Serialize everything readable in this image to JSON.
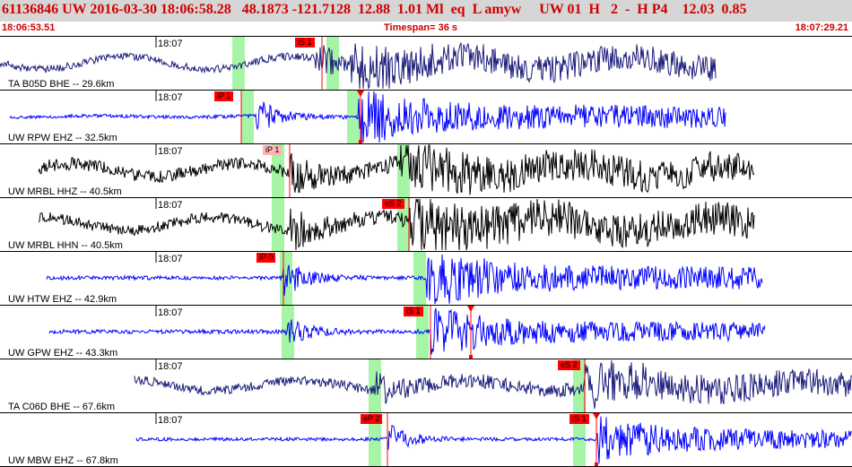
{
  "header": {
    "title": "61136846 UW 2016-03-30 18:06:58.28   48.1873 -121.7128  12.88  1.01 Ml  eq  L amyw     UW 01  H   2  -  H P4    12.03  0.85",
    "start_time": "18:06:53.51",
    "timespan": "Timespan=  36 s",
    "end_time": "18:07:29.21"
  },
  "colors": {
    "title_text": "#d00000",
    "title_bg": "#d6d6d6",
    "pick_red": "#ff0000",
    "pick_pink": "#ffb4b4",
    "window_green": "#a6f5a6",
    "trace_black": "#000000",
    "trace_blue": "#0000ff",
    "trace_navy": "#1a1a7a"
  },
  "traces": [
    {
      "label": "TA B05D BHE -- 29.6km",
      "tick": "18:07",
      "color": "#1a1a7a",
      "start_frac": 0.0,
      "end_frac": 0.84,
      "amp": 0.18,
      "noise": 0.09,
      "onset1": 0.37,
      "onset2": 0.41,
      "burst": 0.3,
      "style": "wave",
      "picks": [
        {
          "label": "iS 1",
          "frac": 0.378,
          "kind": "red",
          "line": "#ff0000",
          "marker": false
        }
      ],
      "windows": [
        {
          "frac": 0.28
        },
        {
          "frac": 0.39
        }
      ]
    },
    {
      "label": "UW RPW EHZ -- 32.5km",
      "tick": "18:07",
      "color": "#0000ff",
      "start_frac": 0.012,
      "end_frac": 0.852,
      "amp": 0.02,
      "noise": 0.04,
      "onset1": 0.3,
      "onset2": 0.42,
      "burst": 0.38,
      "style": "quiet",
      "picks": [
        {
          "label": "iP 1",
          "frac": 0.283,
          "kind": "red",
          "line": "#ff0000",
          "marker": false
        },
        {
          "label": "",
          "frac": 0.423,
          "kind": "red",
          "line": "#ff0000",
          "marker": true
        }
      ],
      "windows": [
        {
          "frac": 0.29
        },
        {
          "frac": 0.415
        }
      ]
    },
    {
      "label": "UW MRBL HHZ -- 40.5km",
      "tick": "18:07",
      "color": "#000000",
      "start_frac": 0.045,
      "end_frac": 0.885,
      "amp": 0.18,
      "noise": 0.16,
      "onset1": 0.34,
      "onset2": 0.47,
      "burst": 0.3,
      "style": "wave",
      "picks": [
        {
          "label": "iP 1",
          "frac": 0.34,
          "kind": "pink",
          "line": "#ff0000",
          "marker": false
        }
      ],
      "windows": [
        {
          "frac": 0.326
        },
        {
          "frac": 0.474
        }
      ]
    },
    {
      "label": "UW MRBL HHN -- 40.5km",
      "tick": "18:07",
      "color": "#000000",
      "start_frac": 0.045,
      "end_frac": 0.885,
      "amp": 0.18,
      "noise": 0.14,
      "onset1": 0.34,
      "onset2": 0.48,
      "burst": 0.38,
      "style": "wave",
      "picks": [
        {
          "label": "eS 2",
          "frac": 0.48,
          "kind": "red",
          "line": "#ff0000",
          "marker": false
        }
      ],
      "windows": [
        {
          "frac": 0.326
        },
        {
          "frac": 0.474
        }
      ]
    },
    {
      "label": "UW HTW EHZ -- 42.9km",
      "tick": "18:07",
      "color": "#0000ff",
      "start_frac": 0.055,
      "end_frac": 0.895,
      "amp": 0.0,
      "noise": 0.05,
      "onset1": 0.332,
      "onset2": 0.5,
      "burst": 0.38,
      "style": "quiet",
      "picks": [
        {
          "label": "iP 0",
          "frac": 0.333,
          "kind": "red",
          "line": "#ff0000",
          "marker": false
        }
      ],
      "windows": [
        {
          "frac": 0.336
        },
        {
          "frac": 0.493
        }
      ]
    },
    {
      "label": "UW GPW EHZ -- 43.3km",
      "tick": "18:07",
      "color": "#0000ff",
      "start_frac": 0.058,
      "end_frac": 0.898,
      "amp": 0.0,
      "noise": 0.05,
      "onset1": 0.335,
      "onset2": 0.505,
      "burst": 0.3,
      "style": "quiet",
      "picks": [
        {
          "label": "iS 1",
          "frac": 0.505,
          "kind": "red",
          "line": "#ff0000",
          "marker": false
        },
        {
          "label": "",
          "frac": 0.553,
          "kind": "red",
          "line": "#ff0000",
          "marker": true
        }
      ],
      "windows": [
        {
          "frac": 0.338
        },
        {
          "frac": 0.496
        }
      ]
    },
    {
      "label": "TA C06D BHE -- 67.6km",
      "tick": "18:07",
      "color": "#1a1a7a",
      "start_frac": 0.158,
      "end_frac": 1.0,
      "amp": 0.14,
      "noise": 0.12,
      "onset1": 0.44,
      "onset2": 0.686,
      "burst": 0.25,
      "style": "wave",
      "picks": [
        {
          "label": "eS 2",
          "frac": 0.686,
          "kind": "red",
          "line": "#ff0000",
          "marker": false
        }
      ],
      "windows": [
        {
          "frac": 0.44
        },
        {
          "frac": 0.68
        }
      ]
    },
    {
      "label": "UW MBW EHZ -- 67.8km",
      "tick": "18:07",
      "color": "#0000ff",
      "start_frac": 0.16,
      "end_frac": 1.0,
      "amp": 0.0,
      "noise": 0.04,
      "onset1": 0.455,
      "onset2": 0.7,
      "burst": 0.3,
      "style": "quiet",
      "picks": [
        {
          "label": "eP 2",
          "frac": 0.455,
          "kind": "red",
          "line": "#ff0000",
          "marker": false
        },
        {
          "label": "iS 1",
          "frac": 0.7,
          "kind": "red",
          "line": "#ff0000",
          "marker": true
        }
      ],
      "windows": [
        {
          "frac": 0.44
        },
        {
          "frac": 0.68
        }
      ]
    }
  ]
}
